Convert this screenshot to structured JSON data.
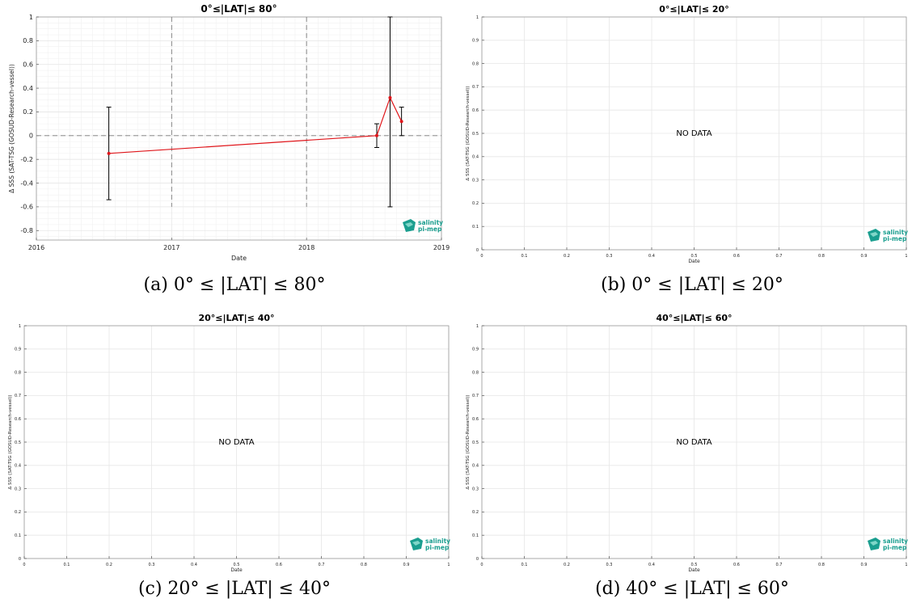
{
  "chart_data": [
    {
      "type": "line",
      "title": "0°≤|LAT|≤ 80°",
      "xlabel": "Date",
      "ylabel": "Δ SSS (SAT-TSG (GOSUD-Research-vessel))",
      "xlim": [
        "2016-01-01",
        "2019-01-01"
      ],
      "ylim": [
        -0.88,
        1.0
      ],
      "x_ticks": [
        "2016",
        "2017",
        "2018",
        "2019"
      ],
      "y_ticks": [
        "1",
        "0.8",
        "0.6",
        "0.4",
        "0.2",
        "0",
        "-0.2",
        "-0.4",
        "-0.6",
        "-0.8"
      ],
      "grid": true,
      "series": [
        {
          "x": [
            "2016-07-15",
            "2018-07-10",
            "2018-08-15",
            "2018-09-15"
          ],
          "values": [
            -0.15,
            0.0,
            0.32,
            0.12
          ],
          "error": [
            0.39,
            0.1,
            0.92,
            0.12
          ]
        }
      ],
      "caption": "(a) 0° ≤ |LAT| ≤ 80°"
    },
    {
      "type": "line",
      "title": "0°≤|LAT|≤ 20°",
      "xlabel": "Date",
      "ylabel": "Δ SSS (SAT-TSG (GOSUD-Research-vessel))",
      "xlim": [
        0,
        1
      ],
      "ylim": [
        0,
        1
      ],
      "x_ticks": [
        "0",
        "0.1",
        "0.2",
        "0.3",
        "0.4",
        "0.5",
        "0.6",
        "0.7",
        "0.8",
        "0.9",
        "1"
      ],
      "y_ticks": [
        "0",
        "0.1",
        "0.2",
        "0.3",
        "0.4",
        "0.5",
        "0.6",
        "0.7",
        "0.8",
        "0.9",
        "1"
      ],
      "grid": true,
      "annotation": "NO DATA",
      "caption": "(b) 0° ≤ |LAT| ≤ 20°"
    },
    {
      "type": "line",
      "title": "20°≤|LAT|≤ 40°",
      "xlabel": "Date",
      "ylabel": "Δ SSS (SAT-TSG (GOSUD-Research-vessel))",
      "xlim": [
        0,
        1
      ],
      "ylim": [
        0,
        1
      ],
      "x_ticks": [
        "0",
        "0.1",
        "0.2",
        "0.3",
        "0.4",
        "0.5",
        "0.6",
        "0.7",
        "0.8",
        "0.9",
        "1"
      ],
      "y_ticks": [
        "0",
        "0.1",
        "0.2",
        "0.3",
        "0.4",
        "0.5",
        "0.6",
        "0.7",
        "0.8",
        "0.9",
        "1"
      ],
      "grid": true,
      "annotation": "NO DATA",
      "caption": "(c) 20° ≤ |LAT| ≤ 40°"
    },
    {
      "type": "line",
      "title": "40°≤|LAT|≤ 60°",
      "xlabel": "Date",
      "ylabel": "Δ SSS (SAT-TSG (GOSUD-Research-vessel))",
      "xlim": [
        0,
        1
      ],
      "ylim": [
        0,
        1
      ],
      "x_ticks": [
        "0",
        "0.1",
        "0.2",
        "0.3",
        "0.4",
        "0.5",
        "0.6",
        "0.7",
        "0.8",
        "0.9",
        "1"
      ],
      "y_ticks": [
        "0",
        "0.1",
        "0.2",
        "0.3",
        "0.4",
        "0.5",
        "0.6",
        "0.7",
        "0.8",
        "0.9",
        "1"
      ],
      "grid": true,
      "annotation": "NO DATA",
      "caption": "(d) 40° ≤ |LAT| ≤ 60°"
    }
  ],
  "logo": {
    "line1": "salinity",
    "line2": "pi-mep",
    "color": "#1a9e8f",
    "icon": "salinity-logo-icon"
  },
  "colors": {
    "line": "#e0161b",
    "errorbar": "#000000",
    "grid": "#e6e6e6",
    "ref": "#7a7a7a"
  }
}
